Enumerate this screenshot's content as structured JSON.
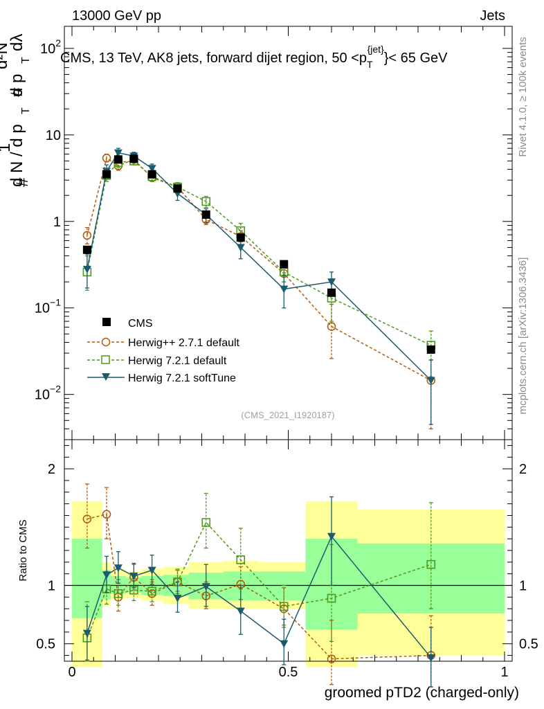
{
  "header": {
    "left": "13000 GeV pp",
    "right": "Jets"
  },
  "side_labels": {
    "rivet": "Rivet 4.1.0, ≥ 100k events",
    "mcplots": "mcplots.cern.ch [arXiv:1306.3436]"
  },
  "colors": {
    "cms": "#000000",
    "herwigpp": "#b35a0f",
    "h721default": "#4a9a1c",
    "h721soft": "#1c5a6e",
    "band_inner": "#99ff99",
    "band_outer": "#ffff99"
  },
  "chart_data": [
    {
      "type": "line",
      "panel": "main",
      "title": "CMS, 13 TeV, AK8 jets, forward dijet region, 50 < p_T^{jet} < 65 GeV",
      "title_parts": {
        "pre": "CMS, 13 TeV, AK8 jets, forward dijet region, 50 <p",
        "sub": "T",
        "sup": "{jet}",
        "post": "}< 65 GeV"
      },
      "ylabel_parts": {
        "a": "#",
        "b": "d N / d p",
        "c": "T",
        "d": "1",
        "e": "#",
        "f": "d p",
        "g": "T",
        "h": "dλ",
        "i": "d²N"
      },
      "watermark": "(CMS_2021_I1920187)",
      "yscale": "log",
      "xlim": [
        0,
        1
      ],
      "ylim": [
        0.003,
        180
      ],
      "yticks": [
        {
          "value": 0.01,
          "base": "10",
          "exp": "−2"
        },
        {
          "value": 0.1,
          "base": "10",
          "exp": "−1"
        },
        {
          "value": 1,
          "base": "1",
          "exp": ""
        },
        {
          "value": 10,
          "base": "10",
          "exp": ""
        },
        {
          "value": 100,
          "base": "10",
          "exp": "2"
        }
      ],
      "legend": {
        "position": "center-left",
        "entries": [
          "CMS",
          "Herwig++ 2.7.1 default",
          "Herwig 7.2.1 default",
          "Herwig 7.2.1 softTune"
        ]
      },
      "series": [
        {
          "name": "CMS",
          "marker": "square-filled",
          "x": [
            0.035,
            0.08,
            0.107,
            0.143,
            0.185,
            0.244,
            0.31,
            0.39,
            0.49,
            0.6,
            0.83
          ],
          "y": [
            0.47,
            3.5,
            5.2,
            5.3,
            3.5,
            2.4,
            1.2,
            0.65,
            0.32,
            0.15,
            0.033
          ]
        },
        {
          "name": "Herwig++ 2.7.1 default",
          "marker": "circle-open",
          "dash": "dashed",
          "x": [
            0.035,
            0.08,
            0.107,
            0.143,
            0.185,
            0.244,
            0.31,
            0.39,
            0.49,
            0.6,
            0.83
          ],
          "y": [
            0.69,
            5.4,
            4.4,
            5.2,
            3.2,
            2.5,
            1.05,
            0.67,
            0.25,
            0.061,
            0.0145
          ],
          "err_low": [
            0.55,
            4.9,
            3.9,
            4.8,
            2.9,
            2.3,
            0.92,
            0.58,
            0.2,
            0.026,
            0.004
          ],
          "err_high": [
            0.85,
            6.0,
            5.0,
            5.8,
            3.6,
            2.8,
            1.2,
            0.78,
            0.31,
            0.11,
            0.025
          ]
        },
        {
          "name": "Herwig 7.2.1 default",
          "marker": "square-open",
          "dash": "dashed",
          "x": [
            0.035,
            0.08,
            0.107,
            0.143,
            0.185,
            0.244,
            0.31,
            0.39,
            0.49,
            0.6,
            0.83
          ],
          "y": [
            0.26,
            3.4,
            4.8,
            5.0,
            3.3,
            2.5,
            1.7,
            0.78,
            0.26,
            0.13,
            0.037
          ],
          "err_low": [
            0.16,
            2.9,
            4.2,
            4.5,
            2.9,
            2.2,
            1.45,
            0.62,
            0.2,
            0.07,
            0.025
          ],
          "err_high": [
            0.4,
            3.9,
            5.4,
            5.6,
            3.7,
            2.8,
            1.95,
            0.95,
            0.33,
            0.2,
            0.054
          ]
        },
        {
          "name": "Herwig 7.2.1 softTune",
          "marker": "triangle-down-filled",
          "dash": "solid",
          "x": [
            0.035,
            0.08,
            0.107,
            0.143,
            0.185,
            0.244,
            0.31,
            0.39,
            0.49,
            0.6,
            0.83
          ],
          "y": [
            0.28,
            3.8,
            6.2,
            5.7,
            4.1,
            2.1,
            1.2,
            0.5,
            0.165,
            0.2,
            0.0145
          ],
          "err_low": [
            0.17,
            3.2,
            5.5,
            5.1,
            3.6,
            1.75,
            0.98,
            0.37,
            0.1,
            0.14,
            0.0045
          ],
          "err_high": [
            0.42,
            4.5,
            7.0,
            6.3,
            4.6,
            2.5,
            1.4,
            0.65,
            0.24,
            0.26,
            0.025
          ]
        }
      ]
    },
    {
      "type": "line",
      "panel": "ratio",
      "ylabel": "Ratio to CMS",
      "xlabel": "groomed pTD2 (charged-only)",
      "xlim": [
        0,
        1
      ],
      "ylim": [
        0.35,
        2.25
      ],
      "yticks": [
        "0.5",
        "1",
        "2"
      ],
      "xticks": [
        "0",
        "0.5",
        "1"
      ],
      "bands": [
        {
          "xlo": 0.0,
          "xhi": 0.07,
          "inner": [
            0.72,
            1.4
          ],
          "outer": [
            0.3,
            1.72
          ]
        },
        {
          "xlo": 0.07,
          "xhi": 0.09,
          "inner": [
            0.88,
            1.13
          ],
          "outer": [
            0.82,
            1.2
          ]
        },
        {
          "xlo": 0.09,
          "xhi": 0.125,
          "inner": [
            0.93,
            1.08
          ],
          "outer": [
            0.88,
            1.14
          ]
        },
        {
          "xlo": 0.125,
          "xhi": 0.16,
          "inner": [
            0.94,
            1.07
          ],
          "outer": [
            0.89,
            1.12
          ]
        },
        {
          "xlo": 0.16,
          "xhi": 0.21,
          "inner": [
            0.92,
            1.08
          ],
          "outer": [
            0.87,
            1.14
          ]
        },
        {
          "xlo": 0.21,
          "xhi": 0.27,
          "inner": [
            0.91,
            1.09
          ],
          "outer": [
            0.84,
            1.16
          ]
        },
        {
          "xlo": 0.27,
          "xhi": 0.35,
          "inner": [
            0.88,
            1.11
          ],
          "outer": [
            0.8,
            1.2
          ]
        },
        {
          "xlo": 0.35,
          "xhi": 0.43,
          "inner": [
            0.87,
            1.12
          ],
          "outer": [
            0.8,
            1.21
          ]
        },
        {
          "xlo": 0.43,
          "xhi": 0.54,
          "inner": [
            0.87,
            1.12
          ],
          "outer": [
            0.8,
            1.2
          ]
        },
        {
          "xlo": 0.54,
          "xhi": 0.66,
          "inner": [
            0.62,
            1.4
          ],
          "outer": [
            0.3,
            1.72
          ]
        },
        {
          "xlo": 0.66,
          "xhi": 1.0,
          "inner": [
            0.76,
            1.36
          ],
          "outer": [
            0.4,
            1.65
          ]
        }
      ],
      "series": [
        {
          "name": "Herwig++ 2.7.1 default",
          "x": [
            0.035,
            0.08,
            0.107,
            0.143,
            0.185,
            0.244,
            0.31,
            0.39,
            0.49,
            0.6,
            0.83
          ],
          "y": [
            1.57,
            1.61,
            0.9,
            1.07,
            0.93,
            1.03,
            0.91,
            1.01,
            0.8,
            0.37,
            0.4
          ],
          "err_low": [
            1.32,
            1.4,
            0.78,
            0.96,
            0.83,
            0.95,
            0.8,
            0.88,
            0.66,
            0.15,
            0.13
          ],
          "err_high": [
            1.87,
            1.84,
            1.02,
            1.18,
            1.03,
            1.13,
            1.03,
            1.16,
            0.98,
            0.7,
            0.74
          ]
        },
        {
          "name": "Herwig 7.2.1 default",
          "x": [
            0.035,
            0.08,
            0.107,
            0.143,
            0.185,
            0.244,
            0.31,
            0.39,
            0.49,
            0.6,
            0.83
          ],
          "y": [
            0.55,
            0.97,
            0.93,
            0.96,
            0.95,
            1.03,
            1.54,
            1.22,
            0.82,
            0.89,
            1.18
          ],
          "err_low": [
            0.35,
            0.84,
            0.83,
            0.87,
            0.86,
            0.93,
            1.32,
            0.97,
            0.64,
            0.52,
            0.8
          ],
          "err_high": [
            0.86,
            1.12,
            1.05,
            1.06,
            1.05,
            1.14,
            1.79,
            1.49,
            1.0,
            1.35,
            1.71
          ]
        },
        {
          "name": "Herwig 7.2.1 softTune",
          "x": [
            0.035,
            0.08,
            0.107,
            0.143,
            0.185,
            0.244,
            0.31,
            0.39,
            0.49,
            0.6,
            0.83
          ],
          "y": [
            0.59,
            1.09,
            1.15,
            1.08,
            1.13,
            0.89,
            0.99,
            0.78,
            0.5,
            1.42,
            0.38
          ],
          "err_low": [
            0.36,
            0.94,
            1.02,
            0.98,
            1.01,
            0.77,
            0.82,
            0.58,
            0.32,
            1.0,
            0.13
          ],
          "err_high": [
            0.82,
            1.25,
            1.29,
            1.19,
            1.26,
            1.03,
            1.18,
            1.0,
            0.71,
            1.76,
            0.64
          ]
        }
      ]
    }
  ]
}
